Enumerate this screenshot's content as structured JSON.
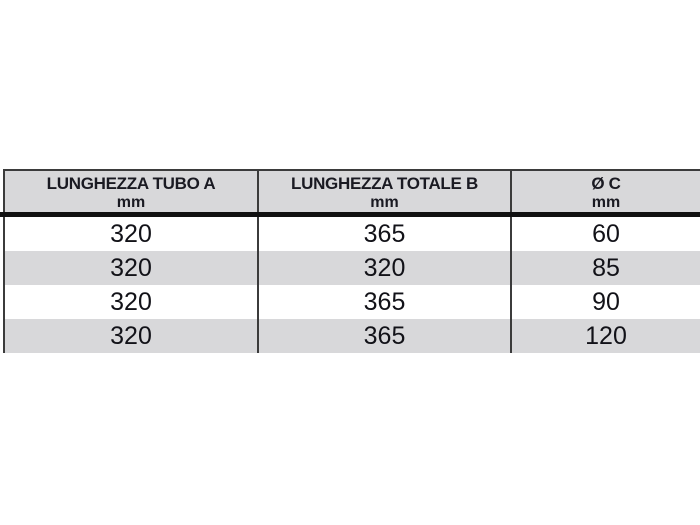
{
  "colors": {
    "page_bg": "#ffffff",
    "header_bg": "#d8d8da",
    "row_bg": "#ffffff",
    "row_alt_bg": "#d8d8da",
    "border": "#3b3b3b",
    "separator": "#111111",
    "header_text": "#1a1a22",
    "number_text": "#121218"
  },
  "table": {
    "columns": [
      {
        "title": "LUNGHEZZA TUBO A",
        "unit": "mm"
      },
      {
        "title": "LUNGHEZZA TOTALE B",
        "unit": "mm"
      },
      {
        "title": "Ø C",
        "unit": "mm"
      }
    ],
    "rows": [
      [
        "320",
        "365",
        "60"
      ],
      [
        "320",
        "320",
        "85"
      ],
      [
        "320",
        "365",
        "90"
      ],
      [
        "320",
        "365",
        "120"
      ]
    ]
  }
}
